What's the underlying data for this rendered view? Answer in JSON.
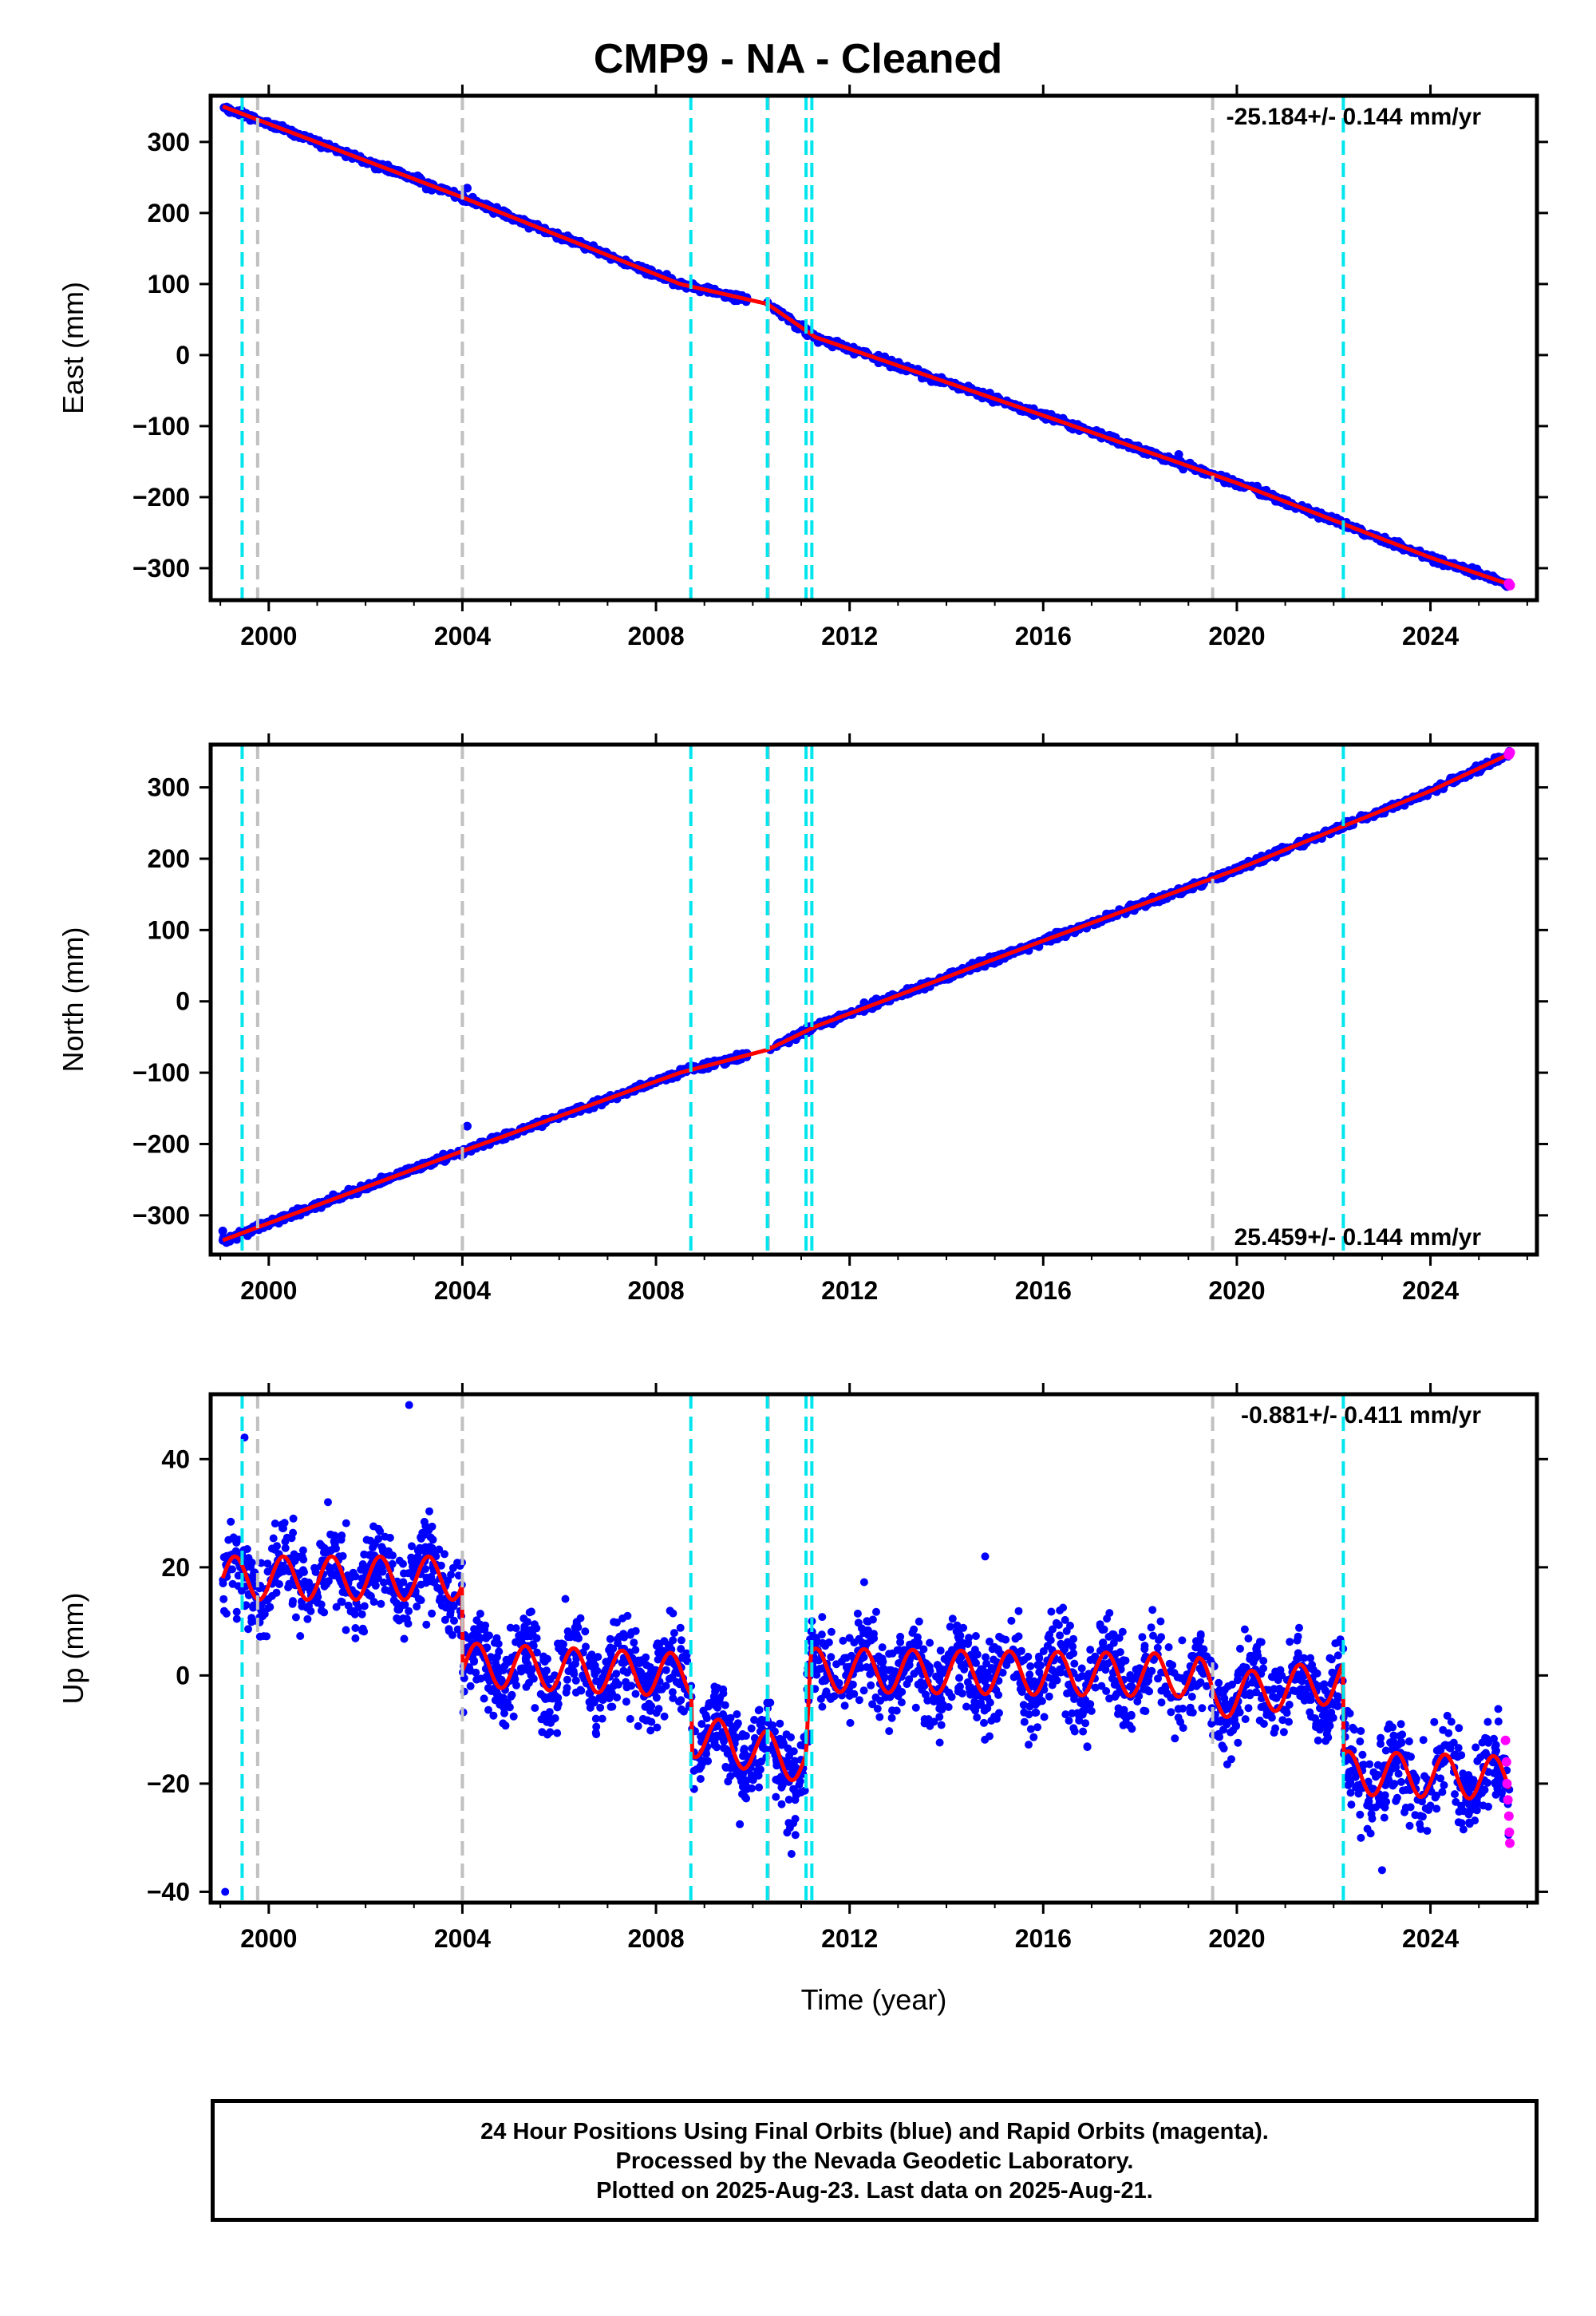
{
  "title": "CMP9  - NA - Cleaned",
  "xlabel": "Time (year)",
  "footer": {
    "line1": "24 Hour Positions Using Final Orbits (blue) and Rapid Orbits (magenta).",
    "line2": "Processed by the Nevada Geodetic Laboratory.",
    "line3": "Plotted on 2025-Aug-23. Last data on 2025-Aug-21."
  },
  "colors": {
    "final_orbits": "#0000ff",
    "rapid_orbits": "#ff00ff",
    "model": "#ff0000",
    "antenna_change": "#00e5ee",
    "earthquake": "#c0c0c0"
  },
  "chart_data": [
    {
      "type": "scatter",
      "ylabel": "East (mm)",
      "annotation": "-25.184+/- 0.144 mm/yr",
      "annotation_position": "top-right",
      "xlim": [
        1998.8,
        2026.2
      ],
      "ylim": [
        -345,
        365
      ],
      "xticks": [
        2000,
        2004,
        2008,
        2012,
        2016,
        2020,
        2024
      ],
      "xtick_labels": [
        "2000",
        "2004",
        "2008",
        "2012",
        "2016",
        "2020",
        "2024"
      ],
      "yticks": [
        -300,
        -200,
        -100,
        0,
        100,
        200,
        300
      ],
      "ytick_labels": [
        "−300",
        "−200",
        "−100",
        "0",
        "100",
        "200",
        "300"
      ],
      "x_range": [
        1999.05,
        2025.64
      ],
      "series": [
        {
          "role": "final_orbits",
          "color": "#0000ff"
        },
        {
          "role": "rapid_orbits",
          "color": "#ff00ff"
        },
        {
          "role": "model",
          "color": "#ff0000"
        }
      ],
      "model_points": [
        [
          1999.05,
          350
        ],
        [
          2004.0,
          222
        ],
        [
          2008.5,
          100
        ],
        [
          2010.3,
          72
        ],
        [
          2011.3,
          25
        ],
        [
          2016.0,
          -85
        ],
        [
          2020.0,
          -180
        ],
        [
          2024.0,
          -285
        ],
        [
          2025.64,
          -323
        ]
      ],
      "offsets": [
        [
          2008.75,
          10
        ],
        [
          2011.2,
          -18
        ]
      ],
      "noise": 3,
      "outliers": [
        [
          2004.1,
          235
        ],
        [
          2018.8,
          -140
        ]
      ],
      "rapid_points": [
        [
          2025.62,
          -322
        ],
        [
          2025.64,
          -324
        ]
      ]
    },
    {
      "type": "scatter",
      "ylabel": "North (mm)",
      "annotation": "25.459+/- 0.144 mm/yr",
      "annotation_position": "bottom-right",
      "xlim": [
        1998.8,
        2026.2
      ],
      "ylim": [
        -355,
        360
      ],
      "xticks": [
        2000,
        2004,
        2008,
        2012,
        2016,
        2020,
        2024
      ],
      "xtick_labels": [
        "2000",
        "2004",
        "2008",
        "2012",
        "2016",
        "2020",
        "2024"
      ],
      "yticks": [
        -300,
        -200,
        -100,
        0,
        100,
        200,
        300
      ],
      "ytick_labels": [
        "−300",
        "−200",
        "−100",
        "0",
        "100",
        "200",
        "300"
      ],
      "x_range": [
        1999.05,
        2025.64
      ],
      "series": [
        {
          "role": "final_orbits",
          "color": "#0000ff"
        },
        {
          "role": "rapid_orbits",
          "color": "#ff00ff"
        },
        {
          "role": "model",
          "color": "#ff0000"
        }
      ],
      "model_points": [
        [
          1999.05,
          -335
        ],
        [
          2004.0,
          -210
        ],
        [
          2008.5,
          -100
        ],
        [
          2010.3,
          -68
        ],
        [
          2011.3,
          -35
        ],
        [
          2016.0,
          85
        ],
        [
          2020.0,
          185
        ],
        [
          2024.0,
          295
        ],
        [
          2025.64,
          347
        ]
      ],
      "offsets": [
        [
          2008.75,
          -8
        ],
        [
          2011.2,
          12
        ]
      ],
      "noise": 3,
      "outliers": [
        [
          2004.1,
          -175
        ],
        [
          1999.05,
          -322
        ]
      ],
      "rapid_points": [
        [
          2025.62,
          346
        ],
        [
          2025.64,
          349
        ]
      ]
    },
    {
      "type": "scatter",
      "ylabel": "Up (mm)",
      "annotation": "-0.881+/- 0.411 mm/yr",
      "annotation_position": "top-right",
      "xlim": [
        1998.8,
        2026.2
      ],
      "ylim": [
        -42,
        52
      ],
      "xticks": [
        2000,
        2004,
        2008,
        2012,
        2016,
        2020,
        2024
      ],
      "xtick_labels": [
        "2000",
        "2004",
        "2008",
        "2012",
        "2016",
        "2020",
        "2024"
      ],
      "yticks": [
        -40,
        -20,
        0,
        20,
        40
      ],
      "ytick_labels": [
        "−40",
        "−20",
        "0",
        "20",
        "40"
      ],
      "x_range": [
        1999.05,
        2025.64
      ],
      "series": [
        {
          "role": "final_orbits",
          "color": "#0000ff"
        },
        {
          "role": "rapid_orbits",
          "color": "#ff00ff"
        },
        {
          "role": "model",
          "color": "#ff0000"
        }
      ],
      "model_base": [
        [
          1999.05,
          18
        ],
        [
          2004.0,
          18
        ],
        [
          2004.01,
          2
        ],
        [
          2008.74,
          0
        ],
        [
          2008.75,
          -11
        ],
        [
          2011.1,
          -16
        ],
        [
          2011.2,
          1
        ],
        [
          2019.2,
          0
        ],
        [
          2019.5,
          -4
        ],
        [
          2022.2,
          -1
        ],
        [
          2022.21,
          -18
        ],
        [
          2025.64,
          -19
        ]
      ],
      "seasonal_amplitude": 4,
      "noise": 5,
      "outliers": [
        [
          1999.1,
          -40
        ],
        [
          1999.5,
          44
        ],
        [
          2002.9,
          50
        ],
        [
          2014.8,
          22
        ],
        [
          2023.0,
          -36
        ],
        [
          2010.8,
          -33
        ]
      ],
      "rapid_points": [
        [
          2025.55,
          -12
        ],
        [
          2025.57,
          -16
        ],
        [
          2025.58,
          -20
        ],
        [
          2025.6,
          -23
        ],
        [
          2025.62,
          -26
        ],
        [
          2025.63,
          -29
        ],
        [
          2025.64,
          -31
        ]
      ]
    }
  ],
  "antenna_change_years": [
    1999.45,
    2008.72,
    2010.3,
    2011.1,
    2011.22,
    2022.2
  ],
  "earthquake_years": [
    1999.77,
    2004.0,
    2010.32,
    2019.5
  ]
}
